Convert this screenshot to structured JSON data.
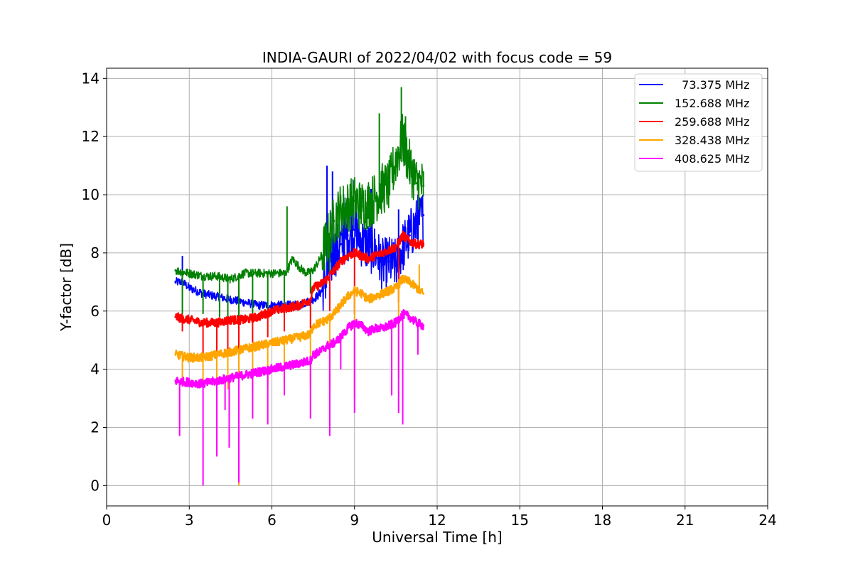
{
  "chart_data": {
    "type": "line",
    "title": "INDIA-GAURI of 2022/04/02 with focus code = 59",
    "xlabel": "Universal Time [h]",
    "ylabel": "Y-factor [dB]",
    "xlim": [
      0,
      24
    ],
    "ylim": [
      -0.7,
      14.35
    ],
    "xticks": [
      "0",
      "3",
      "6",
      "9",
      "12",
      "15",
      "18",
      "21",
      "24"
    ],
    "yticks": [
      "0",
      "2",
      "4",
      "6",
      "8",
      "10",
      "12",
      "14"
    ],
    "grid": true,
    "legend_position": "top-right",
    "series": [
      {
        "name": "  73.375 MHz",
        "color": "#0000ff",
        "x": [
          2.5,
          2.75,
          3.0,
          3.5,
          4.0,
          4.5,
          5.0,
          5.5,
          6.0,
          6.5,
          7.0,
          7.5,
          7.75,
          8.0,
          8.25,
          8.5,
          8.75,
          9.0,
          9.25,
          9.5,
          9.75,
          10.0,
          10.25,
          10.5,
          10.75,
          11.0,
          11.25,
          11.5
        ],
        "values": [
          7.0,
          7.0,
          6.8,
          6.6,
          6.5,
          6.4,
          6.3,
          6.2,
          6.2,
          6.2,
          6.2,
          6.4,
          6.6,
          7.2,
          8.0,
          8.3,
          8.6,
          8.8,
          8.4,
          8.2,
          8.1,
          7.6,
          7.7,
          7.6,
          8.2,
          8.6,
          9.0,
          9.3
        ],
        "spikes": [
          [
            2.75,
            7.9
          ],
          [
            8.0,
            11.0
          ],
          [
            8.2,
            10.8
          ],
          [
            8.6,
            10.0
          ],
          [
            8.95,
            10.5
          ],
          [
            9.6,
            10.2
          ],
          [
            10.6,
            9.5
          ],
          [
            11.3,
            10.0
          ]
        ]
      },
      {
        "name": "152.688 MHz",
        "color": "#008000",
        "x": [
          2.5,
          3.0,
          3.5,
          4.0,
          4.5,
          5.0,
          5.5,
          6.0,
          6.5,
          6.75,
          7.0,
          7.25,
          7.5,
          7.75,
          8.0,
          8.25,
          8.5,
          8.75,
          9.0,
          9.25,
          9.5,
          9.75,
          10.0,
          10.25,
          10.5,
          10.75,
          11.0,
          11.25,
          11.5
        ],
        "values": [
          7.4,
          7.3,
          7.2,
          7.2,
          7.1,
          7.3,
          7.3,
          7.3,
          7.3,
          7.8,
          7.5,
          7.3,
          7.4,
          7.8,
          8.4,
          9.1,
          9.5,
          9.6,
          9.8,
          9.6,
          9.7,
          9.9,
          10.2,
          10.3,
          11.2,
          11.9,
          11.0,
          10.4,
          10.3
        ],
        "spikes": [
          [
            6.55,
            9.6
          ],
          [
            9.9,
            12.8
          ],
          [
            10.7,
            13.7
          ],
          [
            10.85,
            12.7
          ],
          [
            11.5,
            10.8
          ]
        ],
        "dips": [
          [
            2.75,
            5.9
          ],
          [
            3.5,
            5.9
          ],
          [
            4.1,
            5.8
          ],
          [
            4.4,
            5.6
          ],
          [
            4.8,
            5.7
          ],
          [
            5.3,
            5.8
          ],
          [
            5.85,
            5.9
          ],
          [
            6.45,
            5.8
          ],
          [
            7.4,
            6.6
          ],
          [
            8.1,
            7.3
          ]
        ]
      },
      {
        "name": "259.688 MHz",
        "color": "#ff0000",
        "x": [
          2.5,
          3.0,
          3.5,
          4.0,
          4.5,
          5.0,
          5.5,
          6.0,
          6.5,
          7.0,
          7.4,
          7.5,
          7.75,
          8.0,
          8.25,
          8.5,
          8.75,
          9.0,
          9.25,
          9.5,
          9.75,
          10.0,
          10.25,
          10.5,
          10.75,
          11.0,
          11.25,
          11.5
        ],
        "values": [
          5.8,
          5.7,
          5.6,
          5.6,
          5.7,
          5.7,
          5.8,
          6.0,
          6.1,
          6.2,
          6.4,
          6.8,
          6.9,
          7.1,
          7.4,
          7.7,
          7.9,
          8.0,
          7.9,
          7.8,
          7.9,
          8.0,
          8.1,
          8.2,
          8.6,
          8.4,
          8.3,
          8.3
        ],
        "dips": [
          [
            2.75,
            5.3
          ],
          [
            3.5,
            4.5
          ],
          [
            4.0,
            4.6
          ],
          [
            4.4,
            4.4
          ],
          [
            4.8,
            4.6
          ],
          [
            5.3,
            4.9
          ],
          [
            5.85,
            5.1
          ],
          [
            6.45,
            5.3
          ],
          [
            7.4,
            5.4
          ],
          [
            8.1,
            6.0
          ],
          [
            9.0,
            5.9
          ],
          [
            10.6,
            6.3
          ]
        ]
      },
      {
        "name": "328.438 MHz",
        "color": "#ffa500",
        "x": [
          2.5,
          3.0,
          3.5,
          4.0,
          4.5,
          5.0,
          5.5,
          6.0,
          6.5,
          7.0,
          7.4,
          7.5,
          7.75,
          8.0,
          8.25,
          8.5,
          8.75,
          9.0,
          9.25,
          9.5,
          9.75,
          10.0,
          10.25,
          10.5,
          10.75,
          11.0,
          11.25,
          11.5
        ],
        "values": [
          4.5,
          4.4,
          4.4,
          4.5,
          4.6,
          4.7,
          4.8,
          4.9,
          5.0,
          5.1,
          5.2,
          5.5,
          5.6,
          5.7,
          5.9,
          6.2,
          6.5,
          6.7,
          6.6,
          6.4,
          6.5,
          6.6,
          6.7,
          6.8,
          7.1,
          7.0,
          6.8,
          6.6
        ],
        "spikes": [
          [
            11.35,
            7.6
          ]
        ],
        "dips": [
          [
            2.75,
            3.5
          ],
          [
            3.5,
            3.6
          ],
          [
            4.0,
            3.2
          ],
          [
            4.4,
            3.3
          ],
          [
            4.8,
            0.0
          ],
          [
            5.3,
            3.2
          ],
          [
            5.85,
            3.4
          ],
          [
            6.45,
            3.6
          ],
          [
            7.4,
            3.4
          ],
          [
            8.1,
            3.4
          ],
          [
            9.0,
            3.0
          ],
          [
            10.6,
            3.7
          ]
        ]
      },
      {
        "name": "408.625 MHz",
        "color": "#ff00ff",
        "x": [
          2.5,
          3.0,
          3.5,
          4.0,
          4.5,
          5.0,
          5.5,
          6.0,
          6.5,
          7.0,
          7.4,
          7.5,
          7.75,
          8.0,
          8.25,
          8.5,
          8.75,
          9.0,
          9.25,
          9.5,
          9.75,
          10.0,
          10.25,
          10.5,
          10.75,
          11.0,
          11.25,
          11.5
        ],
        "values": [
          3.6,
          3.55,
          3.5,
          3.6,
          3.7,
          3.8,
          3.9,
          4.0,
          4.1,
          4.2,
          4.3,
          4.5,
          4.6,
          4.8,
          4.9,
          5.1,
          5.4,
          5.6,
          5.5,
          5.3,
          5.4,
          5.4,
          5.5,
          5.6,
          5.9,
          5.8,
          5.6,
          5.5
        ],
        "dips": [
          [
            2.65,
            1.7
          ],
          [
            3.5,
            0.0
          ],
          [
            4.0,
            1.0
          ],
          [
            4.3,
            2.6
          ],
          [
            4.45,
            1.3
          ],
          [
            4.8,
            0.1
          ],
          [
            5.3,
            2.3
          ],
          [
            5.85,
            2.1
          ],
          [
            6.45,
            3.1
          ],
          [
            7.4,
            2.3
          ],
          [
            8.1,
            1.7
          ],
          [
            8.5,
            4.0
          ],
          [
            9.0,
            2.5
          ],
          [
            10.35,
            3.1
          ],
          [
            10.6,
            2.5
          ],
          [
            10.75,
            2.1
          ],
          [
            11.3,
            4.5
          ]
        ]
      }
    ]
  }
}
